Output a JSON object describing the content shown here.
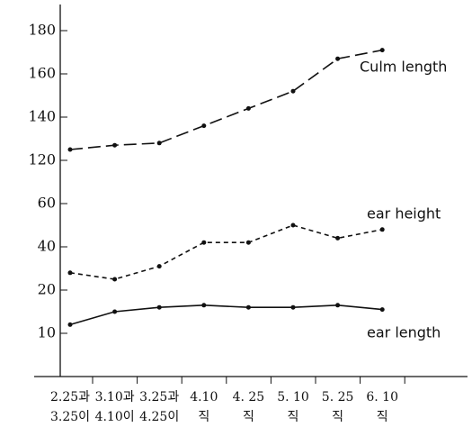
{
  "chart_data": {
    "type": "line",
    "categories": [
      [
        "2.25과",
        "3.25이"
      ],
      [
        "3.10과",
        "4.10이"
      ],
      [
        "3.25과",
        "4.25이"
      ],
      [
        "4.10",
        "직"
      ],
      [
        "4. 25",
        "직"
      ],
      [
        "5. 10",
        "직"
      ],
      [
        "5. 25",
        "직"
      ],
      [
        "6. 10",
        "직"
      ]
    ],
    "yticks": [
      10,
      20,
      40,
      60,
      120,
      140,
      160,
      180
    ],
    "series": [
      {
        "name": "Culm length",
        "color": "#111",
        "dash": "14 6",
        "values": [
          125,
          127,
          128,
          136,
          144,
          152,
          167,
          171
        ]
      },
      {
        "name": "ear height",
        "color": "#111",
        "dash": "5 4",
        "values": [
          28,
          25,
          31,
          42,
          42,
          50,
          44,
          48
        ]
      },
      {
        "name": "ear length",
        "color": "#111",
        "dash": "none",
        "values": [
          12,
          15,
          16,
          16.5,
          16,
          16,
          16.5,
          15.5
        ]
      }
    ]
  }
}
